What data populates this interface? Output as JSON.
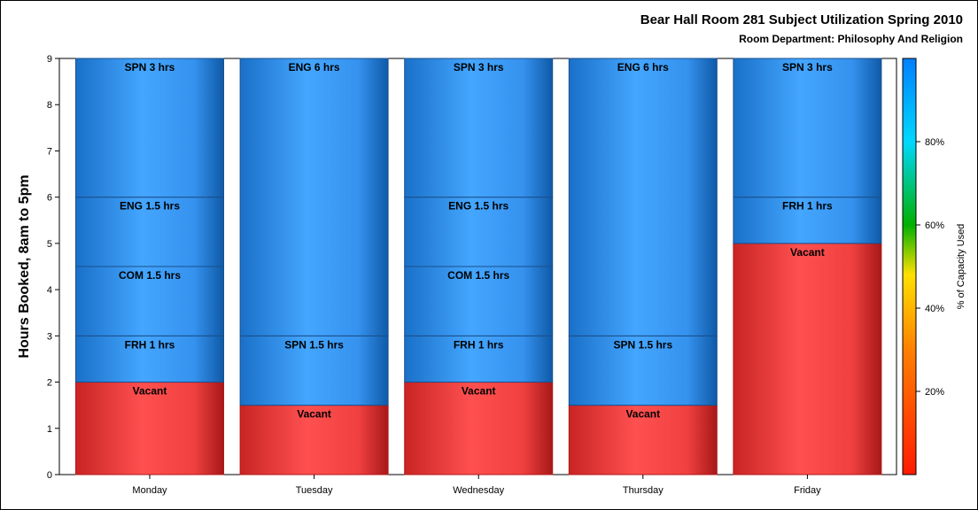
{
  "chart_data": {
    "type": "bar",
    "stacked": true,
    "title": "Bear Hall Room 281 Subject Utilization Spring 2010",
    "subtitle": "Room Department:  Philosophy And Religion",
    "ylabel": "Hours Booked, 8am to 5pm",
    "xlabel": "",
    "ylim": [
      0,
      9
    ],
    "yticks": [
      "0",
      "1",
      "2",
      "3",
      "4",
      "5",
      "6",
      "7",
      "8",
      "9"
    ],
    "categories": [
      "Monday",
      "Tuesday",
      "Wednesday",
      "Thursday",
      "Friday"
    ],
    "stacks": [
      [
        {
          "label": "Vacant",
          "hours": 2,
          "type": "vacant"
        },
        {
          "label": "FRH 1 hrs",
          "hours": 1,
          "type": "booked"
        },
        {
          "label": "COM 1.5 hrs",
          "hours": 1.5,
          "type": "booked"
        },
        {
          "label": "ENG 1.5 hrs",
          "hours": 1.5,
          "type": "booked"
        },
        {
          "label": "SPN 3 hrs",
          "hours": 3,
          "type": "booked"
        }
      ],
      [
        {
          "label": "Vacant",
          "hours": 1.5,
          "type": "vacant"
        },
        {
          "label": "SPN 1.5 hrs",
          "hours": 1.5,
          "type": "booked"
        },
        {
          "label": "ENG 6 hrs",
          "hours": 6,
          "type": "booked"
        }
      ],
      [
        {
          "label": "Vacant",
          "hours": 2,
          "type": "vacant"
        },
        {
          "label": "FRH 1 hrs",
          "hours": 1,
          "type": "booked"
        },
        {
          "label": "COM 1.5 hrs",
          "hours": 1.5,
          "type": "booked"
        },
        {
          "label": "ENG 1.5 hrs",
          "hours": 1.5,
          "type": "booked"
        },
        {
          "label": "SPN 3 hrs",
          "hours": 3,
          "type": "booked"
        }
      ],
      [
        {
          "label": "Vacant",
          "hours": 1.5,
          "type": "vacant"
        },
        {
          "label": "SPN 1.5 hrs",
          "hours": 1.5,
          "type": "booked"
        },
        {
          "label": "ENG 6 hrs",
          "hours": 6,
          "type": "booked"
        }
      ],
      [
        {
          "label": "Vacant",
          "hours": 5,
          "type": "vacant"
        },
        {
          "label": "FRH 1 hrs",
          "hours": 1,
          "type": "booked"
        },
        {
          "label": "SPN 3 hrs",
          "hours": 3,
          "type": "booked"
        }
      ]
    ],
    "colorbar": {
      "label": "% of Capacity Used",
      "ticks": [
        "20%",
        "40%",
        "60%",
        "80%"
      ],
      "tick_values": [
        20,
        40,
        60,
        80
      ],
      "range": [
        0,
        100
      ],
      "colors": [
        "#ff1a00",
        "#ff8000",
        "#ffe000",
        "#00b000",
        "#00d8ff",
        "#0080ff"
      ]
    },
    "colors": {
      "booked": "#3399ff",
      "booked_dark": "#1060b0",
      "vacant": "#ff4d4d",
      "vacant_dark": "#b01818",
      "divider": "#1a4f8a"
    },
    "grid": false,
    "legend": "none"
  }
}
